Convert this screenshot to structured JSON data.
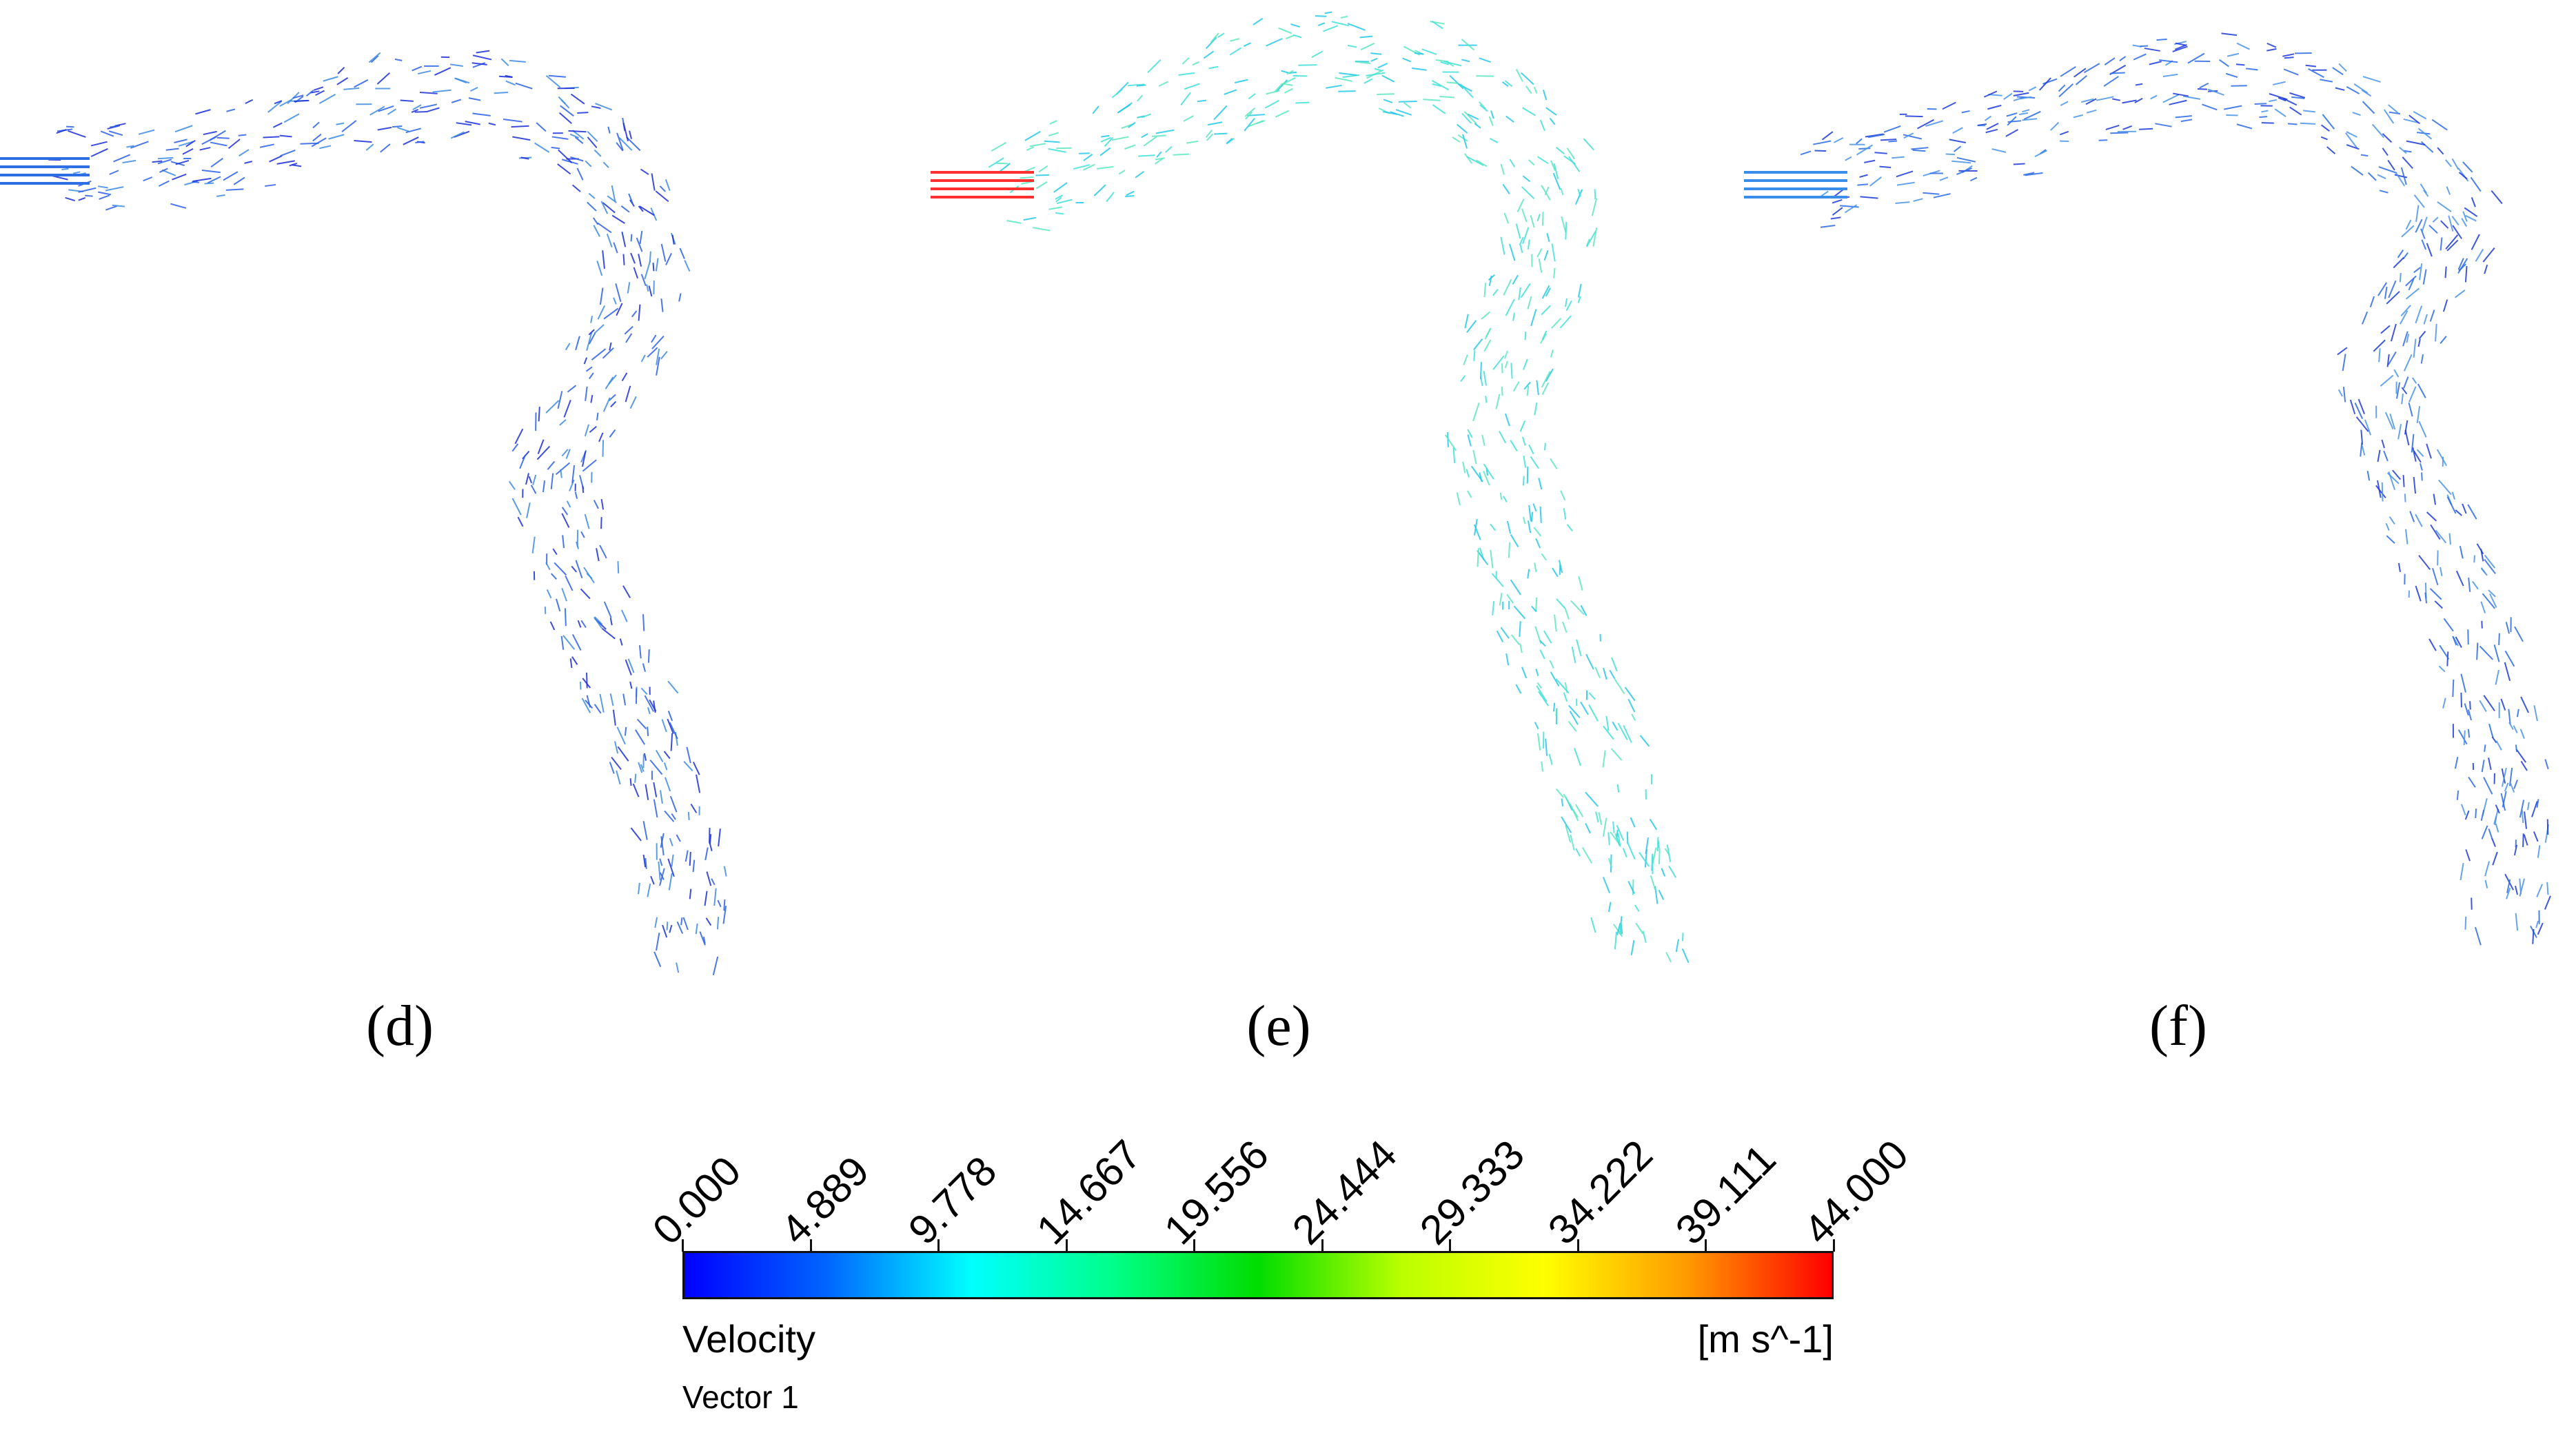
{
  "panels": [
    {
      "label": "(d)",
      "colors": [
        "#1a2ed8",
        "#2a5fe8",
        "#3d8be0"
      ],
      "inlet_color": "#2f6fe6"
    },
    {
      "label": "(e)",
      "colors": [
        "#22c8e8",
        "#3fe0d8",
        "#5ae8c0"
      ],
      "inlet_color": "#ff3030"
    },
    {
      "label": "(f)",
      "colors": [
        "#1c3ad8",
        "#2b6ae6",
        "#4a94e8"
      ],
      "inlet_color": "#3a8ee8"
    }
  ],
  "colorbar": {
    "title": "Velocity",
    "units": "[m s^-1]",
    "subtitle": "Vector 1",
    "ticks": [
      "0.000",
      "4.889",
      "9.778",
      "14.667",
      "19.556",
      "24.444",
      "29.333",
      "34.222",
      "39.111",
      "44.000"
    ],
    "range": [
      0,
      44
    ],
    "gradient": [
      "#0000ff",
      "#0066ff",
      "#00ffff",
      "#00ff88",
      "#00dd00",
      "#bbff00",
      "#ffff00",
      "#ff9900",
      "#ff0000"
    ]
  }
}
